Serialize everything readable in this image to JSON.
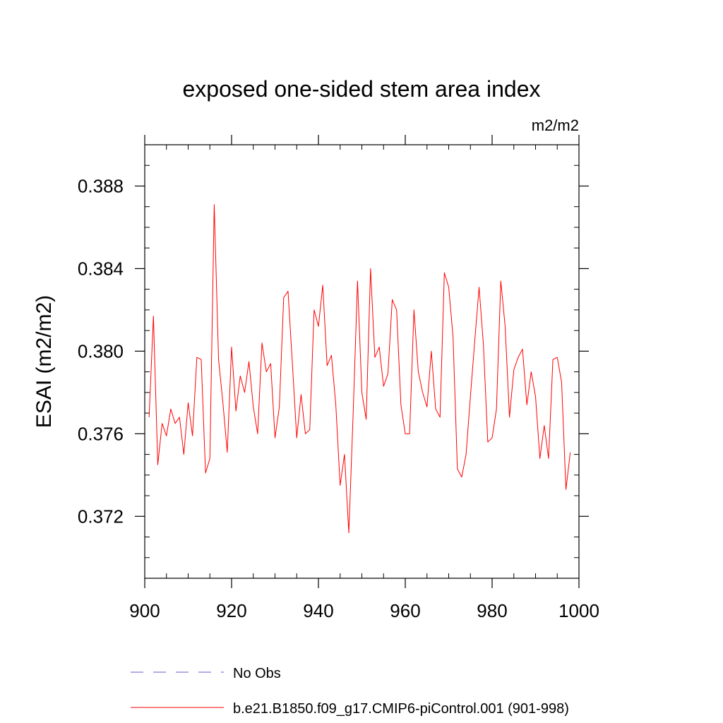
{
  "chart_data": {
    "type": "line",
    "title": "exposed one-sided stem area index",
    "units": "m2/m2",
    "xlabel": "",
    "ylabel": "ESAI  (m2/m2)",
    "xlim": [
      900,
      1000
    ],
    "ylim": [
      0.369,
      0.39
    ],
    "xticks": [
      "900",
      "920",
      "940",
      "960",
      "980",
      "1000"
    ],
    "yticks": [
      "0.372",
      "0.376",
      "0.380",
      "0.384",
      "0.388"
    ],
    "grid": false,
    "series": [
      {
        "name": "b.e21.B1850.f09_g17.CMIP6-piControl.001 (901-998)",
        "color": "#ff0000",
        "style": "solid",
        "x": [
          901,
          902,
          903,
          904,
          905,
          906,
          907,
          908,
          909,
          910,
          911,
          912,
          913,
          914,
          915,
          916,
          917,
          918,
          919,
          920,
          921,
          922,
          923,
          924,
          925,
          926,
          927,
          928,
          929,
          930,
          931,
          932,
          933,
          934,
          935,
          936,
          937,
          938,
          939,
          940,
          941,
          942,
          943,
          944,
          945,
          946,
          947,
          948,
          949,
          950,
          951,
          952,
          953,
          954,
          955,
          956,
          957,
          958,
          959,
          960,
          961,
          962,
          963,
          964,
          965,
          966,
          967,
          968,
          969,
          970,
          971,
          972,
          973,
          974,
          975,
          976,
          977,
          978,
          979,
          980,
          981,
          982,
          983,
          984,
          985,
          986,
          987,
          988,
          989,
          990,
          991,
          992,
          993,
          994,
          995,
          996,
          997,
          998
        ],
        "values": [
          0.3768,
          0.3817,
          0.3745,
          0.3765,
          0.3759,
          0.3772,
          0.3765,
          0.3768,
          0.375,
          0.3775,
          0.3759,
          0.3797,
          0.3796,
          0.3741,
          0.3748,
          0.3871,
          0.3796,
          0.3775,
          0.3751,
          0.3802,
          0.3771,
          0.3788,
          0.378,
          0.3795,
          0.3773,
          0.376,
          0.3804,
          0.379,
          0.3794,
          0.3758,
          0.3773,
          0.3826,
          0.3829,
          0.3794,
          0.3758,
          0.3779,
          0.376,
          0.3762,
          0.382,
          0.3812,
          0.3832,
          0.3793,
          0.3798,
          0.3774,
          0.3735,
          0.375,
          0.3712,
          0.377,
          0.3834,
          0.378,
          0.3767,
          0.384,
          0.3797,
          0.3802,
          0.3783,
          0.3789,
          0.3825,
          0.382,
          0.3774,
          0.376,
          0.376,
          0.382,
          0.379,
          0.378,
          0.3773,
          0.38,
          0.3772,
          0.3768,
          0.3838,
          0.3831,
          0.3807,
          0.3743,
          0.3739,
          0.375,
          0.3778,
          0.3805,
          0.3831,
          0.3803,
          0.3756,
          0.3758,
          0.3772,
          0.3834,
          0.3812,
          0.3768,
          0.3791,
          0.3797,
          0.3801,
          0.3774,
          0.379,
          0.3778,
          0.3748,
          0.3764,
          0.3748,
          0.3796,
          0.3797,
          0.3785,
          0.3733,
          0.3751
        ]
      }
    ],
    "legend": [
      {
        "label": "No Obs",
        "color": "#6a5acd",
        "style": "dashed"
      },
      {
        "label": "b.e21.B1850.f09_g17.CMIP6-piControl.001 (901-998)",
        "color": "#ff0000",
        "style": "solid"
      }
    ]
  }
}
